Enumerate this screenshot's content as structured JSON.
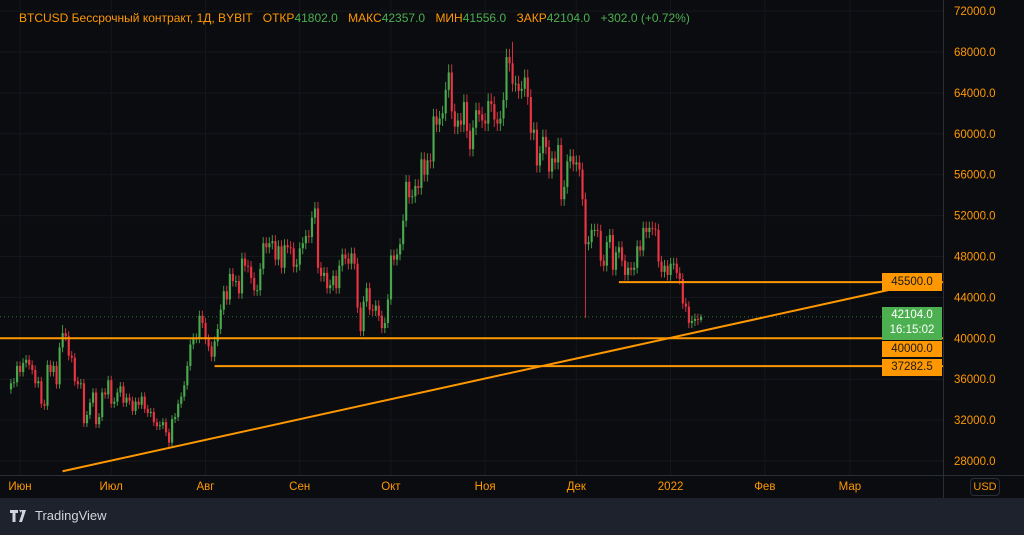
{
  "header": {
    "symbol": "BTCUSD Бессрочный контракт, 1Д, BYBIT",
    "open_label": "ОТКР",
    "open": "41802.0",
    "high_label": "МАКС",
    "high": "42357.0",
    "low_label": "МИН",
    "low": "41556.0",
    "close_label": "ЗАКР",
    "close": "42104.0",
    "change": "+302.0 (+0.72%)"
  },
  "currency_button": "USD",
  "tags": {
    "level1": "45500.0",
    "current_price": "42104.0",
    "countdown": "16:15:02",
    "level2": "40000.0",
    "level3": "37282.5"
  },
  "branding": {
    "logo_text": "TradingView"
  },
  "colors": {
    "accent": "#ff9800",
    "up": "#4caf50",
    "down": "#f23645",
    "background": "#0b0c10"
  },
  "chart_data": {
    "type": "candlestick",
    "title": "BTCUSD Бессрочный контракт, 1Д, BYBIT",
    "start_date": "2021-05-29",
    "interval": "1D",
    "units": "thousand USD",
    "ylim": [
      27000,
      72000
    ],
    "y_ticks": [
      "28000.0",
      "32000.0",
      "36000.0",
      "40000.0",
      "44000.0",
      "48000.0",
      "52000.0",
      "56000.0",
      "60000.0",
      "64000.0",
      "68000.0",
      "72000.0"
    ],
    "y_tick_values": [
      28000,
      32000,
      36000,
      40000,
      44000,
      48000,
      52000,
      56000,
      60000,
      64000,
      68000,
      72000
    ],
    "x_ticks": [
      {
        "label": "Июн",
        "day": 3
      },
      {
        "label": "Июл",
        "day": 33
      },
      {
        "label": "Авг",
        "day": 64
      },
      {
        "label": "Сен",
        "day": 95
      },
      {
        "label": "Окт",
        "day": 125
      },
      {
        "label": "Ноя",
        "day": 156
      },
      {
        "label": "Дек",
        "day": 186
      },
      {
        "label": "2022",
        "day": 217
      },
      {
        "label": "Фев",
        "day": 248
      },
      {
        "label": "Мар",
        "day": 276
      }
    ],
    "first_open": 35.0,
    "closes": [
      35.6,
      35.7,
      37.3,
      36.7,
      37.6,
      37.9,
      37.4,
      36.9,
      35.6,
      35.8,
      33.6,
      33.4,
      37.4,
      36.7,
      37.3,
      35.5,
      39.1,
      40.5,
      40.2,
      38.3,
      38.1,
      35.8,
      35.5,
      35.6,
      31.7,
      32.5,
      33.7,
      34.7,
      31.6,
      32.3,
      34.7,
      34.5,
      35.9,
      33.6,
      33.8,
      34.7,
      35.3,
      33.7,
      34.2,
      33.9,
      32.9,
      33.8,
      33.5,
      34.3,
      33.1,
      32.7,
      32.8,
      31.8,
      31.4,
      31.5,
      31.8,
      30.8,
      29.8,
      32.1,
      32.3,
      33.6,
      34.3,
      35.4,
      37.3,
      39.4,
      40.0,
      40.0,
      42.2,
      41.5,
      39.9,
      39.2,
      38.2,
      39.7,
      40.9,
      42.8,
      44.6,
      43.8,
      46.3,
      45.6,
      45.6,
      44.4,
      47.8,
      47.1,
      47.0,
      45.9,
      44.7,
      44.7,
      46.8,
      49.3,
      48.9,
      49.3,
      49.5,
      47.7,
      49.0,
      46.9,
      49.1,
      48.9,
      48.8,
      47.0,
      47.2,
      48.8,
      49.3,
      50.0,
      49.9,
      51.8,
      52.7,
      46.9,
      46.1,
      46.4,
      44.9,
      45.2,
      46.1,
      44.9,
      47.1,
      48.2,
      47.8,
      47.3,
      48.3,
      47.3,
      43.0,
      40.7,
      43.6,
      44.9,
      42.8,
      42.7,
      43.2,
      42.2,
      41.0,
      41.5,
      43.8,
      48.1,
      47.7,
      48.2,
      49.2,
      51.5,
      55.3,
      53.8,
      53.9,
      54.9,
      54.7,
      57.5,
      56.0,
      57.4,
      57.3,
      61.7,
      60.9,
      61.5,
      62.0,
      64.3,
      66.0,
      62.2,
      60.7,
      61.3,
      60.9,
      63.1,
      60.3,
      58.5,
      60.6,
      62.3,
      61.9,
      61.3,
      61.0,
      63.2,
      62.9,
      61.4,
      61.0,
      61.5,
      63.3,
      67.5,
      66.9,
      64.9,
      64.9,
      64.2,
      64.4,
      65.5,
      63.6,
      60.1,
      60.4,
      56.9,
      58.1,
      59.7,
      58.7,
      56.3,
      57.6,
      57.2,
      58.9,
      53.6,
      54.8,
      57.3,
      57.8,
      57.0,
      57.2,
      56.5,
      53.6,
      49.2,
      49.4,
      50.6,
      50.6,
      50.5,
      47.6,
      47.1,
      49.4,
      50.1,
      46.7,
      48.4,
      48.9,
      47.6,
      46.2,
      46.9,
      46.7,
      46.9,
      49.0,
      48.6,
      50.8,
      50.4,
      50.8,
      50.7,
      50.6,
      47.5,
      46.5,
      47.1,
      46.2,
      47.3,
      47.3,
      46.4,
      45.8,
      43.4,
      43.1,
      41.5,
      41.7,
      41.9,
      41.8,
      42.104
    ],
    "wick_overrides": {
      "17": {
        "h": 41.3
      },
      "52": {
        "l": 29.3
      },
      "165": {
        "h": 69.0
      },
      "189": {
        "l": 42.0
      },
      "227": {
        "o": 41.802,
        "h": 42.357,
        "l": 41.556
      }
    },
    "horizontal_levels": [
      {
        "price": 45500,
        "from_day": 200
      },
      {
        "price": 40000,
        "from_day": 0
      },
      {
        "price": 37282.5,
        "from_day": 67
      }
    ],
    "trendline": {
      "from": {
        "day": 17,
        "price": 27000
      },
      "to": {
        "day": 306,
        "price": 45850
      }
    }
  }
}
